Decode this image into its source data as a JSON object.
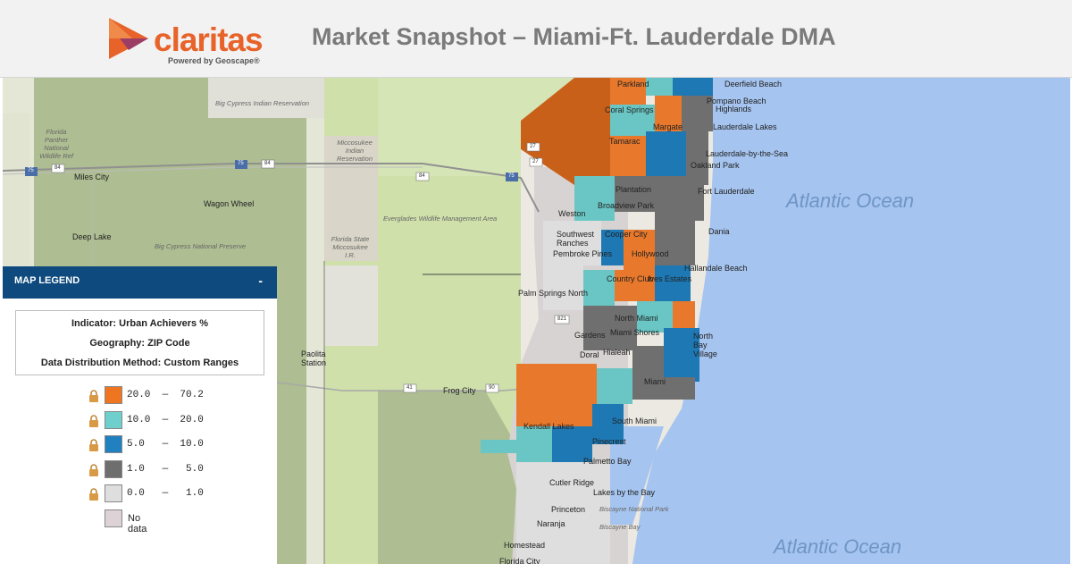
{
  "header": {
    "logo_word": "claritas",
    "logo_tagline": "Powered by Geoscape®",
    "title": "Market Snapshot – Miami-Ft. Lauderdale DMA"
  },
  "map": {
    "ocean_label_1": "Atlantic Ocean",
    "ocean_label_2": "Atlantic Ocean",
    "place_labels": {
      "parkland": "Parkland",
      "deerfield": "Deerfield Beach",
      "pompano": "Pompano Beach",
      "highlands": "Highlands",
      "coral_springs": "Coral Springs",
      "margate": "Margate",
      "tamarac": "Tamarac",
      "lauderdale_lakes": "Lauderdale Lakes",
      "lauderdale_sea": "Lauderdale-by-the-Sea",
      "oakland_park": "Oakland Park",
      "plantation": "Plantation",
      "fort_lauderdale": "Fort Lauderdale",
      "weston": "Weston",
      "broadview_park": "Broadview Park",
      "dania": "Dania",
      "southwest_ranches": "Southwest Ranches",
      "cooper_city": "Cooper City",
      "pembroke_pines": "Pembroke Pines",
      "hollywood": "Hollywood",
      "hallandale": "Hallandale Beach",
      "country_club": "Country Club",
      "ives_estates": "Ives Estates",
      "palm_springs_north": "Palm Springs North",
      "north_miami": "North Miami",
      "north_bay_village": "North Bay Village",
      "gardens": "Gardens",
      "miami_shores": "Miami Shores",
      "hialeah": "Hialeah",
      "doral": "Doral",
      "miami": "Miami",
      "frog_city": "Frog City",
      "south_miami": "South Miami",
      "kendall_lakes": "Kendall Lakes",
      "pinecrest": "Pinecrest",
      "palmetto_bay": "Palmetto Bay",
      "lakes_by_the_bay": "Lakes by the Bay",
      "biscayne_np": "Biscayne National Park",
      "biscayne_bay": "Biscayne Bay",
      "princeton": "Princeton",
      "naranja": "Naranja",
      "homestead": "Homestead",
      "florida_city": "Florida City",
      "cutler_ridge": "Cutler Ridge",
      "miles_city": "Miles City",
      "wagon_wheel": "Wagon Wheel",
      "deep_lake": "Deep Lake",
      "paolita": "Paolita Station",
      "big_cypress_res": "Big Cypress Indian Reservation",
      "big_cypress_np": "Big Cypress National Preserve",
      "everglades_wma": "Everglades Wildlife Management Area",
      "florida_panther": "Florida Panther National Wildlife Ref",
      "miccosukee_res": "Miccosukee Indian Reservation",
      "florida_state_miccosukee": "Florida State Miccosukee I.R."
    },
    "shields": {
      "i75_a": "75",
      "us84_a": "84",
      "i75_b": "75",
      "us84_b": "84",
      "i75_c": "75",
      "us84_c": "84",
      "i75_d": "75",
      "s27_a": "27",
      "s27_b": "27",
      "s41": "41",
      "s90": "90",
      "s821": "821"
    }
  },
  "legend": {
    "header": "MAP LEGEND",
    "collapse": "-",
    "indicator": "Indicator: Urban Achievers %",
    "geography": "Geography: ZIP Code",
    "method": "Data Distribution Method: Custom Ranges",
    "ranges": [
      {
        "text": "20.0  —  70.2",
        "color": "#f07520"
      },
      {
        "text": "10.0  —  20.0",
        "color": "#6fcfcc"
      },
      {
        "text": "5.0   —  10.0",
        "color": "#2180c0"
      },
      {
        "text": "1.0   —   5.0",
        "color": "#6e6e6e"
      },
      {
        "text": "0.0   —   1.0",
        "color": "#dedede"
      }
    ],
    "no_data": "No data",
    "no_data_color": "#ddd3d6"
  }
}
